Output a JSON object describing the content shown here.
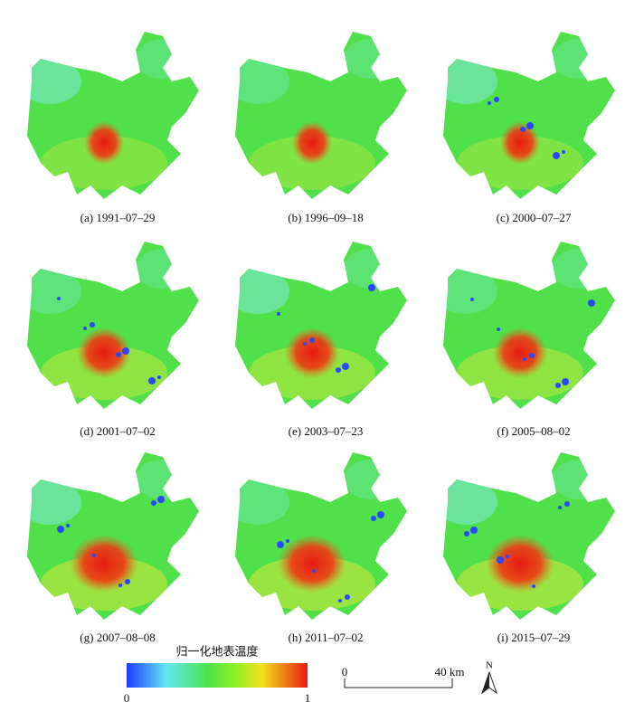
{
  "panels": [
    {
      "caption": "(a) 1991–07–29"
    },
    {
      "caption": "(b) 1996–09–18"
    },
    {
      "caption": "(c) 2000–07–27"
    },
    {
      "caption": "(d) 2001–07–02"
    },
    {
      "caption": "(e) 2003–07–23"
    },
    {
      "caption": "(f) 2005–08–02"
    },
    {
      "caption": "(g) 2007–08–08"
    },
    {
      "caption": "(h) 2011–07–02"
    },
    {
      "caption": "(i) 2015–07–29"
    }
  ],
  "legend": {
    "title": "归一化地表温度",
    "min_label": "0",
    "max_label": "1"
  },
  "scale_bar": {
    "start_label": "0",
    "end_label": "40 km"
  },
  "north_label": "N"
}
